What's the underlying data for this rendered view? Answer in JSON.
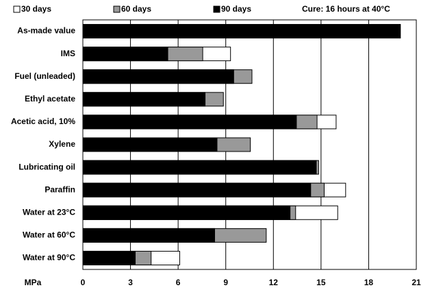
{
  "chart_data": {
    "type": "overlapping_bar",
    "annotation": "Cure: 16 hours at 40°C",
    "xlabel": "MPa",
    "categories": [
      "As-made value",
      "IMS",
      "Fuel (unleaded)",
      "Ethyl acetate",
      "Acetic acid, 10%",
      "Xylene",
      "Lubricating oil",
      "Paraffin",
      "Water at 23°C",
      "Water at 60°C",
      "Water at 90°C"
    ],
    "series": [
      {
        "name": "30 days",
        "color": "#ffffff",
        "values": [
          null,
          9.3,
          null,
          null,
          15.95,
          null,
          null,
          16.55,
          16.05,
          null,
          6.1
        ]
      },
      {
        "name": "60 days",
        "color": "#999999",
        "values": [
          null,
          7.55,
          10.65,
          8.85,
          14.75,
          10.55,
          14.85,
          15.2,
          13.4,
          11.55,
          4.3
        ]
      },
      {
        "name": "90 days",
        "color": "#000000",
        "values": [
          20.0,
          5.35,
          9.5,
          7.7,
          13.45,
          8.45,
          14.7,
          14.35,
          13.05,
          8.3,
          3.3
        ]
      }
    ],
    "xlim": [
      0,
      21
    ],
    "xticks": [
      0,
      3,
      6,
      9,
      12,
      15,
      18,
      21
    ],
    "grid": true
  }
}
